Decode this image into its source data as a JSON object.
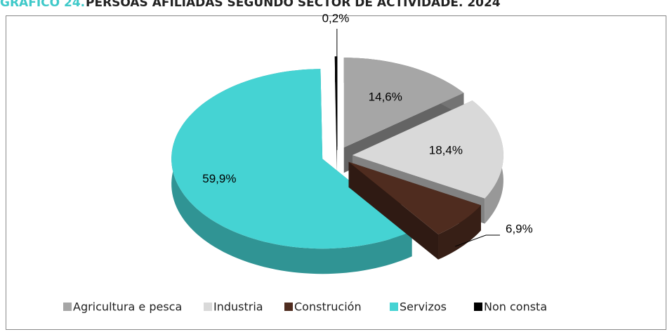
{
  "chart_data": {
    "type": "pie",
    "title_prefix": "GRÁFICO 24.",
    "title": "PERSOAS AFILIADAS SEGUNDO SECTOR DE ACTIVIDADE. 2024",
    "categories": [
      "Agricultura e pesca",
      "Industria",
      "Construción",
      "Servizos",
      "Non consta"
    ],
    "values": [
      14.6,
      18.4,
      6.9,
      59.9,
      0.2
    ],
    "value_labels": [
      "14,6%",
      "18,4%",
      "6,9%",
      "59,9%",
      "0,2%"
    ],
    "colors": [
      "#a6a6a6",
      "#d9d9d9",
      "#4f2c1f",
      "#45d3d3",
      "#000000"
    ],
    "legend": "bottom"
  }
}
